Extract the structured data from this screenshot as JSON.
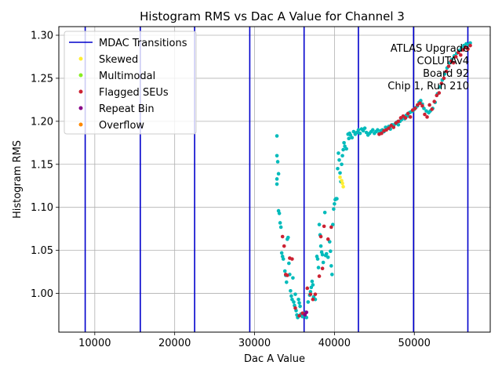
{
  "chart_data": {
    "type": "scatter",
    "title": "Histogram RMS vs Dac A Value for Channel 3",
    "xlabel": "Dac A Value",
    "ylabel": "Histogram RMS",
    "xlim": [
      5500,
      59500
    ],
    "ylim": [
      0.955,
      1.31
    ],
    "xticks": [
      10000,
      20000,
      30000,
      40000,
      50000
    ],
    "yticks": [
      1.0,
      1.05,
      1.1,
      1.15,
      1.2,
      1.25,
      1.3
    ],
    "xtick_labels": [
      "10000",
      "20000",
      "30000",
      "40000",
      "50000"
    ],
    "ytick_labels": [
      "1.00",
      "1.05",
      "1.10",
      "1.15",
      "1.20",
      "1.25",
      "1.30"
    ],
    "grid": true,
    "legend_position": "top-left",
    "vlines": {
      "name": "MDAC Transitions",
      "color": "#0000cc",
      "x": [
        8800,
        15700,
        22500,
        29400,
        36200,
        43000,
        49900,
        56700
      ]
    },
    "legend": [
      {
        "label": "MDAC Transitions",
        "kind": "line",
        "color": "#0000cc"
      },
      {
        "label": "Skewed",
        "kind": "point",
        "color": "#ffee33"
      },
      {
        "label": "Multimodal",
        "kind": "point",
        "color": "#88ee22"
      },
      {
        "label": "Flagged SEUs",
        "kind": "point",
        "color": "#cc2233"
      },
      {
        "label": "Repeat Bin",
        "kind": "point",
        "color": "#880088"
      },
      {
        "label": "Overflow",
        "kind": "point",
        "color": "#ff8800"
      }
    ],
    "annotation": [
      "ATLAS Upgrade",
      "COLUTAv4",
      "Board 92",
      "Chip 1, Run 210"
    ],
    "series": [
      {
        "name": "",
        "color": "#00bbbb",
        "points": [
          [
            32800,
            1.183
          ],
          [
            32800,
            1.16
          ],
          [
            32900,
            1.153
          ],
          [
            33000,
            1.139
          ],
          [
            32800,
            1.133
          ],
          [
            32800,
            1.127
          ],
          [
            33000,
            1.096
          ],
          [
            33100,
            1.093
          ],
          [
            33200,
            1.082
          ],
          [
            33300,
            1.077
          ],
          [
            33400,
            1.047
          ],
          [
            33500,
            1.043
          ],
          [
            33600,
            1.04
          ],
          [
            33800,
            1.026
          ],
          [
            33900,
            1.021
          ],
          [
            34000,
            1.013
          ],
          [
            34100,
            1.063
          ],
          [
            34200,
            1.065
          ],
          [
            34300,
            1.035
          ],
          [
            34400,
            1.022
          ],
          [
            34500,
            1.003
          ],
          [
            34600,
            0.997
          ],
          [
            34700,
            0.993
          ],
          [
            34800,
            1.018
          ],
          [
            34900,
            0.99
          ],
          [
            35000,
            0.986
          ],
          [
            35100,
            0.999
          ],
          [
            35200,
            0.98
          ],
          [
            35300,
            0.975
          ],
          [
            35400,
            0.972
          ],
          [
            35500,
            0.993
          ],
          [
            35600,
            0.989
          ],
          [
            35700,
            0.985
          ],
          [
            35800,
            0.976
          ],
          [
            35900,
            0.975
          ],
          [
            36000,
            0.973
          ],
          [
            36200,
            0.974
          ],
          [
            36400,
            0.978
          ],
          [
            36500,
            0.972
          ],
          [
            36700,
            0.99
          ],
          [
            36900,
            0.998
          ],
          [
            37000,
            1.002
          ],
          [
            37100,
            1.007
          ],
          [
            37200,
            1.014
          ],
          [
            37300,
            1.01
          ],
          [
            37400,
            0.996
          ],
          [
            37600,
            0.993
          ],
          [
            37800,
            1.043
          ],
          [
            37900,
            1.04
          ],
          [
            38000,
            1.03
          ],
          [
            38100,
            1.08
          ],
          [
            38200,
            1.068
          ],
          [
            38300,
            1.055
          ],
          [
            38400,
            1.048
          ],
          [
            38500,
            1.045
          ],
          [
            38600,
            1.036
          ],
          [
            38800,
            1.094
          ],
          [
            38900,
            1.044
          ],
          [
            39000,
            1.046
          ],
          [
            39200,
            1.042
          ],
          [
            39400,
            1.06
          ],
          [
            39500,
            1.049
          ],
          [
            39600,
            1.032
          ],
          [
            39700,
            1.022
          ],
          [
            39800,
            1.08
          ],
          [
            39900,
            1.098
          ],
          [
            40000,
            1.104
          ],
          [
            40100,
            1.109
          ],
          [
            40200,
            1.11
          ],
          [
            40300,
            1.11
          ],
          [
            40400,
            1.145
          ],
          [
            40500,
            1.163
          ],
          [
            40600,
            1.155
          ],
          [
            40700,
            1.14
          ],
          [
            40800,
            1.13
          ],
          [
            40900,
            1.15
          ],
          [
            41000,
            1.16
          ],
          [
            41100,
            1.167
          ],
          [
            41200,
            1.175
          ],
          [
            41300,
            1.171
          ],
          [
            41500,
            1.168
          ],
          [
            41700,
            1.185
          ],
          [
            41800,
            1.18
          ],
          [
            41900,
            1.186
          ],
          [
            42000,
            1.184
          ],
          [
            42200,
            1.181
          ],
          [
            42400,
            1.188
          ],
          [
            42600,
            1.185
          ],
          [
            42800,
            1.187
          ],
          [
            43000,
            1.19
          ],
          [
            43200,
            1.186
          ],
          [
            43400,
            1.191
          ],
          [
            43600,
            1.189
          ],
          [
            43800,
            1.192
          ],
          [
            44000,
            1.187
          ],
          [
            44200,
            1.184
          ],
          [
            44400,
            1.186
          ],
          [
            44600,
            1.188
          ],
          [
            44800,
            1.19
          ],
          [
            45000,
            1.186
          ],
          [
            45200,
            1.188
          ],
          [
            45400,
            1.19
          ],
          [
            45600,
            1.186
          ],
          [
            45800,
            1.189
          ],
          [
            46000,
            1.19
          ],
          [
            46200,
            1.188
          ],
          [
            46400,
            1.193
          ],
          [
            46600,
            1.192
          ],
          [
            46800,
            1.194
          ],
          [
            47000,
            1.191
          ],
          [
            47200,
            1.196
          ],
          [
            47400,
            1.195
          ],
          [
            47600,
            1.197
          ],
          [
            47800,
            1.199
          ],
          [
            48000,
            1.196
          ],
          [
            48200,
            1.2
          ],
          [
            48400,
            1.202
          ],
          [
            48600,
            1.205
          ],
          [
            48800,
            1.203
          ],
          [
            49000,
            1.207
          ],
          [
            49200,
            1.206
          ],
          [
            49400,
            1.21
          ],
          [
            49600,
            1.211
          ],
          [
            49800,
            1.212
          ],
          [
            50000,
            1.214
          ],
          [
            50200,
            1.216
          ],
          [
            50400,
            1.218
          ],
          [
            50600,
            1.222
          ],
          [
            50800,
            1.224
          ],
          [
            51000,
            1.22
          ],
          [
            51200,
            1.215
          ],
          [
            51500,
            1.212
          ],
          [
            51800,
            1.21
          ],
          [
            52000,
            1.212
          ],
          [
            52300,
            1.215
          ],
          [
            52600,
            1.222
          ],
          [
            52900,
            1.232
          ],
          [
            53200,
            1.24
          ],
          [
            53500,
            1.248
          ],
          [
            53800,
            1.255
          ],
          [
            54100,
            1.262
          ],
          [
            54400,
            1.268
          ],
          [
            54700,
            1.272
          ],
          [
            55000,
            1.276
          ],
          [
            55300,
            1.279
          ],
          [
            55600,
            1.282
          ],
          [
            55900,
            1.285
          ],
          [
            56200,
            1.288
          ],
          [
            56500,
            1.29
          ],
          [
            56800,
            1.289
          ],
          [
            57000,
            1.291
          ]
        ]
      },
      {
        "name": "",
        "color": "#cc2233",
        "points": [
          [
            33500,
            1.066
          ],
          [
            33700,
            1.055
          ],
          [
            33900,
            1.022
          ],
          [
            34100,
            1.021
          ],
          [
            34400,
            1.041
          ],
          [
            34700,
            1.04
          ],
          [
            35100,
            0.983
          ],
          [
            35600,
            0.974
          ],
          [
            36000,
            0.977
          ],
          [
            36300,
            0.976
          ],
          [
            36600,
            1.006
          ],
          [
            37000,
            0.999
          ],
          [
            37300,
            0.993
          ],
          [
            37600,
            0.999
          ],
          [
            38100,
            1.02
          ],
          [
            38300,
            1.066
          ],
          [
            38500,
            1.029
          ],
          [
            38700,
            1.078
          ],
          [
            39200,
            1.063
          ],
          [
            39600,
            1.077
          ],
          [
            45600,
            1.185
          ],
          [
            45900,
            1.186
          ],
          [
            46200,
            1.189
          ],
          [
            46500,
            1.19
          ],
          [
            46800,
            1.192
          ],
          [
            47100,
            1.195
          ],
          [
            47400,
            1.193
          ],
          [
            47700,
            1.198
          ],
          [
            48000,
            1.2
          ],
          [
            48300,
            1.204
          ],
          [
            48600,
            1.206
          ],
          [
            48900,
            1.204
          ],
          [
            49200,
            1.209
          ],
          [
            49500,
            1.205
          ],
          [
            49800,
            1.213
          ],
          [
            50100,
            1.215
          ],
          [
            50400,
            1.219
          ],
          [
            50700,
            1.221
          ],
          [
            51000,
            1.218
          ],
          [
            51300,
            1.208
          ],
          [
            51600,
            1.205
          ],
          [
            51900,
            1.219
          ],
          [
            52200,
            1.214
          ],
          [
            52500,
            1.223
          ],
          [
            52800,
            1.23
          ],
          [
            53100,
            1.233
          ],
          [
            53400,
            1.244
          ],
          [
            53700,
            1.25
          ],
          [
            54000,
            1.258
          ],
          [
            54300,
            1.264
          ],
          [
            54600,
            1.27
          ],
          [
            54900,
            1.268
          ],
          [
            55200,
            1.275
          ],
          [
            55500,
            1.28
          ],
          [
            55800,
            1.277
          ],
          [
            56100,
            1.283
          ],
          [
            56400,
            1.286
          ],
          [
            56700,
            1.284
          ],
          [
            57000,
            1.288
          ]
        ]
      },
      {
        "name": "",
        "color": "#ffee33",
        "points": [
          [
            40700,
            1.135
          ],
          [
            40900,
            1.131
          ],
          [
            41000,
            1.128
          ],
          [
            41100,
            1.124
          ]
        ]
      },
      {
        "name": "",
        "color": "#880088",
        "points": [
          [
            36300,
            0.975
          ],
          [
            36500,
            0.978
          ]
        ]
      }
    ]
  }
}
